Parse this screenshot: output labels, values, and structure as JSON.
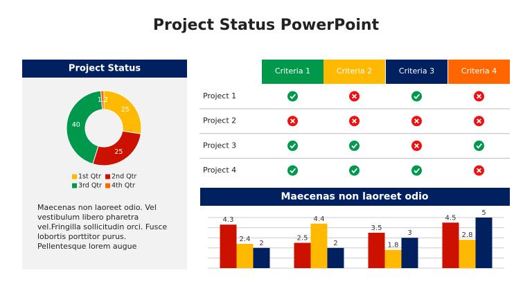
{
  "title": "Project Status PowerPoint",
  "panel": {
    "title": "Project Status",
    "paragraph": [
      "Maecenas non laoreet odio. Vel",
      "vestibulum libero pharetra",
      "vel.Fringilla sollicitudin orci. Fusce",
      "lobortis porttitor purus.",
      "Pellentesque lorem augue"
    ]
  },
  "table": {
    "columns": [
      {
        "label": "Criteria 1",
        "color": "#00994c"
      },
      {
        "label": "Criteria 2",
        "color": "#ffb900"
      },
      {
        "label": "Criteria 3",
        "color": "#002060"
      },
      {
        "label": "Criteria 4",
        "color": "#ff6600"
      }
    ],
    "rows": [
      {
        "label": "Project 1",
        "status": [
          true,
          false,
          true,
          false
        ]
      },
      {
        "label": "Project 2",
        "status": [
          false,
          false,
          false,
          false
        ]
      },
      {
        "label": "Project 3",
        "status": [
          true,
          true,
          false,
          true
        ]
      },
      {
        "label": "Project 4",
        "status": [
          true,
          true,
          true,
          false
        ]
      }
    ]
  },
  "chart_data": [
    {
      "type": "donut",
      "categories": [
        "1st Qtr",
        "2nd Qtr",
        "3rd Qtr",
        "4th Qtr"
      ],
      "values": [
        25,
        25,
        40,
        1.2
      ],
      "colors": [
        "#ffb900",
        "#cc1100",
        "#00994c",
        "#ff6600"
      ],
      "legend": "bottom"
    },
    {
      "type": "bar",
      "title": "Maecenas non laoreet odio",
      "categories": [
        null,
        null,
        null,
        null
      ],
      "series": [
        {
          "color": "#cc1100",
          "values": [
            4.3,
            2.5,
            3.5,
            4.5
          ]
        },
        {
          "color": "#ffb900",
          "values": [
            2.4,
            4.4,
            1.8,
            2.8
          ]
        },
        {
          "color": "#002060",
          "values": [
            2,
            2,
            3,
            5
          ]
        }
      ],
      "ylim": [
        0,
        5
      ],
      "yticks": [
        0,
        1,
        2,
        3,
        4,
        5
      ],
      "grid": true
    }
  ]
}
